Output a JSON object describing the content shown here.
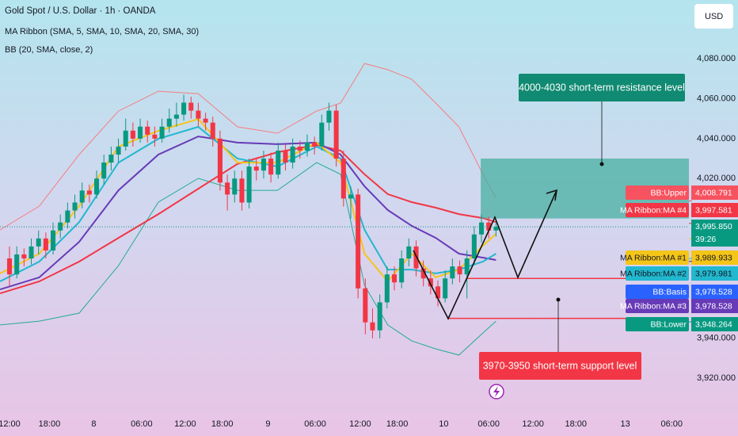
{
  "chart_data": {
    "type": "candlestick",
    "title": "Gold Spot / U.S. Dollar · 1h · OANDA",
    "legend": [
      "MA Ribbon (SMA, 5, SMA, 10, SMA, 20, SMA, 30)",
      "BB (20, SMA, close, 2)"
    ],
    "currency": "USD",
    "up_color": "#089981",
    "down_color": "#f23645",
    "xlim": [
      -1.31,
      93.57
    ],
    "ylim": [
      3903,
      4109.4
    ],
    "xticks": [
      {
        "value": 0,
        "label": "12:00"
      },
      {
        "value": 5.5,
        "label": "18:00"
      },
      {
        "value": 11.6,
        "label": "8"
      },
      {
        "value": 18.2,
        "label": "06:00"
      },
      {
        "value": 24.2,
        "label": "12:00"
      },
      {
        "value": 29.3,
        "label": "18:00"
      },
      {
        "value": 35.6,
        "label": "9"
      },
      {
        "value": 42.1,
        "label": "06:00"
      },
      {
        "value": 48.3,
        "label": "12:00"
      },
      {
        "value": 53.4,
        "label": "18:00"
      },
      {
        "value": 59.8,
        "label": "10"
      },
      {
        "value": 66,
        "label": "06:00"
      },
      {
        "value": 72.1,
        "label": "12:00"
      },
      {
        "value": 78,
        "label": "18:00"
      },
      {
        "value": 84.8,
        "label": "13"
      },
      {
        "value": 91.2,
        "label": "06:00"
      }
    ],
    "yticks": [
      {
        "value": 4080,
        "label": "4,080.000"
      },
      {
        "value": 4060,
        "label": "4,060.000"
      },
      {
        "value": 4040,
        "label": "4,040.000"
      },
      {
        "value": 4020,
        "label": "4,020.000"
      },
      {
        "value": 3940,
        "label": "3,940.000"
      },
      {
        "value": 3920,
        "label": "3,920.000"
      }
    ],
    "candles": [
      [
        3980,
        3986,
        3966,
        3972
      ],
      [
        3972,
        3986,
        3970,
        3982
      ],
      [
        3982,
        3985,
        3976,
        3980
      ],
      [
        3980,
        3990,
        3977,
        3986
      ],
      [
        3986,
        3994,
        3982,
        3990
      ],
      [
        3990,
        3993,
        3980,
        3984
      ],
      [
        3984,
        3998,
        3982,
        3994
      ],
      [
        3994,
        4002,
        3990,
        3998
      ],
      [
        3998,
        4008,
        3995,
        4004
      ],
      [
        4004,
        4012,
        4000,
        4008
      ],
      [
        4008,
        4018,
        4005,
        4014
      ],
      [
        4014,
        4017,
        4008,
        4012
      ],
      [
        4012,
        4024,
        4010,
        4020
      ],
      [
        4020,
        4032,
        4017,
        4028
      ],
      [
        4028,
        4036,
        4024,
        4032
      ],
      [
        4032,
        4040,
        4028,
        4036
      ],
      [
        4036,
        4050,
        4034,
        4044
      ],
      [
        4044,
        4048,
        4036,
        4040
      ],
      [
        4040,
        4050,
        4038,
        4046
      ],
      [
        4046,
        4049,
        4038,
        4042
      ],
      [
        4042,
        4046,
        4036,
        4040
      ],
      [
        4040,
        4050,
        4038,
        4046
      ],
      [
        4046,
        4055,
        4043,
        4050
      ],
      [
        4050,
        4058,
        4046,
        4052
      ],
      [
        4052,
        4062,
        4049,
        4058
      ],
      [
        4058,
        4061,
        4050,
        4054
      ],
      [
        4054,
        4058,
        4046,
        4050
      ],
      [
        4050,
        4053,
        4044,
        4048
      ],
      [
        4048,
        4051,
        4036,
        4040
      ],
      [
        4040,
        4044,
        4014,
        4018
      ],
      [
        4018,
        4022,
        4004,
        4012
      ],
      [
        4012,
        4024,
        4008,
        4020
      ],
      [
        4020,
        4024,
        4004,
        4008
      ],
      [
        4008,
        4030,
        4005,
        4026
      ],
      [
        4026,
        4030,
        4019,
        4024
      ],
      [
        4024,
        4034,
        4020,
        4030
      ],
      [
        4030,
        4033,
        4018,
        4022
      ],
      [
        4022,
        4038,
        4020,
        4034
      ],
      [
        4034,
        4037,
        4024,
        4028
      ],
      [
        4028,
        4040,
        4025,
        4036
      ],
      [
        4036,
        4039,
        4030,
        4034
      ],
      [
        4034,
        4042,
        4031,
        4038
      ],
      [
        4038,
        4041,
        4032,
        4036
      ],
      [
        4036,
        4052,
        4034,
        4048
      ],
      [
        4048,
        4058,
        4044,
        4054
      ],
      [
        4054,
        4057,
        4026,
        4030
      ],
      [
        4030,
        4034,
        4006,
        4010
      ],
      [
        4010,
        4016,
        4000,
        4012
      ],
      [
        4012,
        4015,
        3960,
        3965
      ],
      [
        3965,
        3970,
        3942,
        3948
      ],
      [
        3948,
        3955,
        3940,
        3944
      ],
      [
        3944,
        3962,
        3940,
        3958
      ],
      [
        3958,
        3976,
        3955,
        3972
      ],
      [
        3972,
        3976,
        3964,
        3968
      ],
      [
        3968,
        3984,
        3965,
        3980
      ],
      [
        3980,
        3990,
        3976,
        3986
      ],
      [
        3986,
        3989,
        3971,
        3975
      ],
      [
        3975,
        3979,
        3966,
        3970
      ],
      [
        3970,
        3974,
        3962,
        3966
      ],
      [
        3966,
        3969,
        3956,
        3960
      ],
      [
        3960,
        3974,
        3958,
        3970
      ],
      [
        3970,
        3980,
        3967,
        3976
      ],
      [
        3976,
        3979,
        3968,
        3972
      ],
      [
        3972,
        3984,
        3960,
        3980
      ],
      [
        3980,
        3996,
        3977,
        3992
      ],
      [
        3992,
        4002,
        3988,
        3998
      ],
      [
        3998,
        4001,
        3990,
        3994
      ],
      [
        3994,
        3999,
        3991,
        3995.85
      ]
    ],
    "x": [
      -1.3,
      4.1,
      9.6,
      15,
      20.5,
      26,
      31.4,
      36.9,
      42.3,
      45.6,
      48.9,
      52.1,
      55.4,
      58.7,
      61.9,
      65.2,
      67
    ],
    "series": [
      {
        "color": "#f77c80",
        "values": [
          3994.3,
          4006.2,
          4032.0,
          4053.8,
          4063.7,
          4062.5,
          4045.9,
          4042.7,
          4053.8,
          4057.8,
          4077.6,
          4074.5,
          4069.7,
          4057.8,
          4045.9,
          4022.1,
          4010.2
        ]
      },
      {
        "color": "#22ab94",
        "values": [
          3946.7,
          3948.6,
          3952.6,
          3976.4,
          4008.2,
          4020.1,
          4014.1,
          4014.1,
          4028.0,
          4022.1,
          3966.5,
          3946.7,
          3938.7,
          3934.7,
          3931.6,
          3942.7,
          3948.6
        ]
      },
      {
        "color": "#f23645",
        "values": [
          3962.5,
          3968.5,
          3978.4,
          3990.3,
          4002.2,
          4014.9,
          4027.3,
          4033.2,
          4036.8,
          4034.0,
          4022.1,
          4012.2,
          4008.2,
          4005.4,
          4002.2,
          4000.2,
          3998.2
        ]
      },
      {
        "color": "#673ab7",
        "values": [
          3964.5,
          3970.5,
          3988.3,
          4014.1,
          4032.0,
          4041.1,
          4038.0,
          4037.2,
          4038.0,
          4032.0,
          4016.1,
          4004.2,
          3996.3,
          3990.3,
          3982.4,
          3980.4,
          3979.2
        ]
      },
      {
        "color": "#22b8cf",
        "values": [
          3968.5,
          3978.4,
          3998.2,
          4028.0,
          4039.9,
          4045.9,
          4030.0,
          4026.0,
          4036.0,
          4030.0,
          3994.3,
          3974.4,
          3974.4,
          3972.5,
          3974.4,
          3978.4,
          3982.4
        ]
      },
      {
        "color": "#f5c518",
        "values": [
          3972.5,
          3982.4,
          4006.2,
          4036.0,
          4043.9,
          4049.8,
          4028.0,
          4028.0,
          4038.0,
          4028.0,
          3982.4,
          3968.5,
          3982.4,
          3970.5,
          3974.4,
          3986.4,
          3992.3
        ]
      }
    ],
    "zones": [
      {
        "from": 4000,
        "to": 4030,
        "x_start": 64.9,
        "color": "#3fae9c"
      }
    ],
    "levels": [
      {
        "value": 3970,
        "x_start": 63,
        "color": "#f23645"
      },
      {
        "value": 3950,
        "x_start": 60.3,
        "color": "#f23645"
      }
    ],
    "last_price": {
      "value": 3995.85,
      "label": "3,995.850",
      "countdown": "39:26",
      "color": "#089981"
    },
    "price_labels": [
      {
        "name": "BB:Upper",
        "value": 4008.791,
        "label": "4,008.791",
        "color": "#f7525f",
        "text_color": "#ffffff"
      },
      {
        "name": "MA Ribbon:MA #4",
        "value": 3997.581,
        "label": "3,997.581",
        "color": "#f23645",
        "text_color": "#ffffff"
      },
      {
        "name": "MA Ribbon:MA #1",
        "value": 3989.933,
        "label": "3,989.933",
        "color": "#f5c518",
        "text_color": "#131722"
      },
      {
        "name": "MA Ribbon:MA #2",
        "value": 3979.981,
        "label": "3,979.981",
        "color": "#22b8cf",
        "text_color": "#131722"
      },
      {
        "name": "BB:Basis",
        "value": 3978.528,
        "label": "3,978.528",
        "color": "#2962ff",
        "text_color": "#ffffff"
      },
      {
        "name": "MA Ribbon:MA #3",
        "value": 3978.528,
        "label": "3,978.528",
        "color": "#673ab7",
        "text_color": "#ffffff"
      },
      {
        "name": "BB:Lower",
        "value": 3948.264,
        "label": "3,948.264",
        "color": "#089981",
        "text_color": "#ffffff"
      }
    ],
    "annotations": [
      {
        "text": "4000-4030 short-term resistance level",
        "color": "#108a72"
      },
      {
        "text": "3970-3950 short-term support level",
        "color": "#f23645"
      }
    ]
  }
}
